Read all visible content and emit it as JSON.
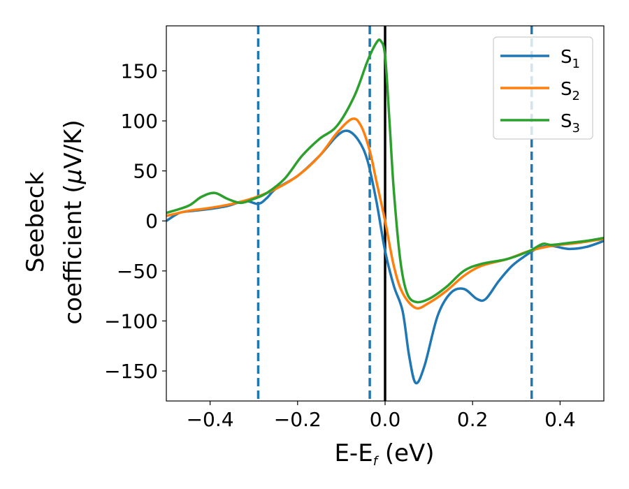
{
  "chart_data": {
    "type": "line",
    "xlabel": {
      "main": "E-E",
      "sub": "f",
      "unit": " (eV)"
    },
    "ylabel": {
      "line1": "Seebeck",
      "line2_pre": "coefficient  (",
      "mu": "μ",
      "line2_post": "V/K)"
    },
    "xlim": [
      -0.5,
      0.5
    ],
    "ylim": [
      -180,
      195
    ],
    "xticks": [
      -0.4,
      -0.2,
      0.0,
      0.2,
      0.4
    ],
    "xtick_labels": [
      "−0.4",
      "−0.2",
      "0.0",
      "0.2",
      "0.4"
    ],
    "yticks": [
      -150,
      -100,
      -50,
      0,
      50,
      100,
      150
    ],
    "ytick_labels": [
      "−150",
      "−100",
      "−50",
      "0",
      "50",
      "100",
      "150"
    ],
    "legend_position": "top-right",
    "vlines": [
      {
        "x": -0.29,
        "style": "dashed",
        "color": "#1f77b4"
      },
      {
        "x": -0.035,
        "style": "dashed",
        "color": "#1f77b4"
      },
      {
        "x": 0.0,
        "style": "solid",
        "color": "#000000"
      },
      {
        "x": 0.335,
        "style": "dashed",
        "color": "#1f77b4"
      }
    ],
    "series": [
      {
        "name": "S",
        "sub": "1",
        "color": "#1f77b4",
        "points": [
          [
            -0.5,
            0
          ],
          [
            -0.47,
            8
          ],
          [
            -0.44,
            10
          ],
          [
            -0.4,
            12
          ],
          [
            -0.36,
            15
          ],
          [
            -0.32,
            20
          ],
          [
            -0.29,
            17
          ],
          [
            -0.27,
            23
          ],
          [
            -0.25,
            32
          ],
          [
            -0.2,
            45
          ],
          [
            -0.15,
            65
          ],
          [
            -0.11,
            85
          ],
          [
            -0.085,
            90
          ],
          [
            -0.06,
            80
          ],
          [
            -0.04,
            60
          ],
          [
            -0.02,
            20
          ],
          [
            0.0,
            -30
          ],
          [
            0.02,
            -65
          ],
          [
            0.04,
            -90
          ],
          [
            0.055,
            -135
          ],
          [
            0.07,
            -162
          ],
          [
            0.09,
            -145
          ],
          [
            0.12,
            -95
          ],
          [
            0.15,
            -72
          ],
          [
            0.18,
            -68
          ],
          [
            0.21,
            -78
          ],
          [
            0.23,
            -78
          ],
          [
            0.26,
            -60
          ],
          [
            0.29,
            -45
          ],
          [
            0.32,
            -35
          ],
          [
            0.35,
            -27
          ],
          [
            0.38,
            -25
          ],
          [
            0.42,
            -28
          ],
          [
            0.46,
            -26
          ],
          [
            0.5,
            -20
          ]
        ]
      },
      {
        "name": "S",
        "sub": "2",
        "color": "#ff7f0e",
        "points": [
          [
            -0.5,
            5
          ],
          [
            -0.45,
            10
          ],
          [
            -0.4,
            13
          ],
          [
            -0.35,
            17
          ],
          [
            -0.3,
            23
          ],
          [
            -0.25,
            32
          ],
          [
            -0.2,
            45
          ],
          [
            -0.15,
            65
          ],
          [
            -0.11,
            88
          ],
          [
            -0.075,
            102
          ],
          [
            -0.055,
            95
          ],
          [
            -0.035,
            70
          ],
          [
            -0.02,
            40
          ],
          [
            0.0,
            0
          ],
          [
            0.02,
            -45
          ],
          [
            0.04,
            -72
          ],
          [
            0.07,
            -87
          ],
          [
            0.1,
            -82
          ],
          [
            0.14,
            -70
          ],
          [
            0.18,
            -55
          ],
          [
            0.22,
            -45
          ],
          [
            0.28,
            -38
          ],
          [
            0.33,
            -30
          ],
          [
            0.38,
            -25
          ],
          [
            0.44,
            -22
          ],
          [
            0.5,
            -18
          ]
        ]
      },
      {
        "name": "S",
        "sub": "3",
        "color": "#2ca02c",
        "points": [
          [
            -0.5,
            8
          ],
          [
            -0.45,
            15
          ],
          [
            -0.42,
            24
          ],
          [
            -0.39,
            28
          ],
          [
            -0.36,
            22
          ],
          [
            -0.33,
            18
          ],
          [
            -0.3,
            22
          ],
          [
            -0.27,
            28
          ],
          [
            -0.23,
            42
          ],
          [
            -0.19,
            65
          ],
          [
            -0.15,
            82
          ],
          [
            -0.11,
            95
          ],
          [
            -0.07,
            125
          ],
          [
            -0.04,
            160
          ],
          [
            -0.02,
            178
          ],
          [
            -0.01,
            180
          ],
          [
            0.0,
            165
          ],
          [
            0.01,
            100
          ],
          [
            0.02,
            30
          ],
          [
            0.035,
            -40
          ],
          [
            0.05,
            -72
          ],
          [
            0.07,
            -81
          ],
          [
            0.1,
            -78
          ],
          [
            0.14,
            -66
          ],
          [
            0.18,
            -50
          ],
          [
            0.22,
            -43
          ],
          [
            0.28,
            -38
          ],
          [
            0.33,
            -30
          ],
          [
            0.36,
            -23
          ],
          [
            0.38,
            -24
          ],
          [
            0.42,
            -22
          ],
          [
            0.46,
            -20
          ],
          [
            0.5,
            -17
          ]
        ]
      }
    ]
  }
}
